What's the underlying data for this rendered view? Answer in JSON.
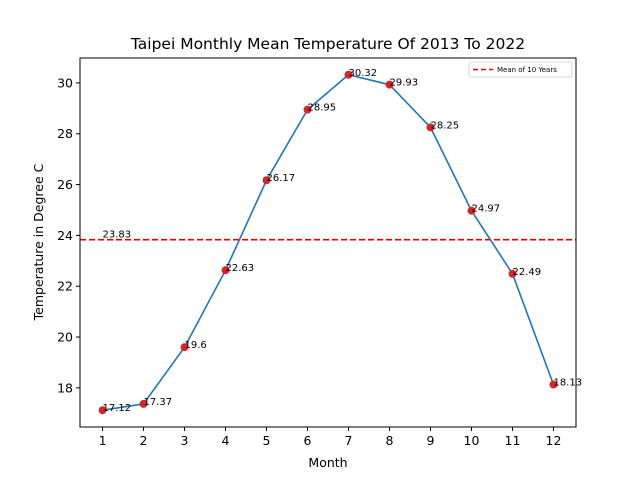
{
  "chart_data": {
    "type": "line",
    "title": "Taipei Monthly Mean Temperature Of 2013 To 2022",
    "xlabel": "Month",
    "ylabel": "Temperature in Degree C",
    "x": [
      1,
      2,
      3,
      4,
      5,
      6,
      7,
      8,
      9,
      10,
      11,
      12
    ],
    "xticks": [
      "1",
      "2",
      "3",
      "4",
      "5",
      "6",
      "7",
      "8",
      "9",
      "10",
      "11",
      "12"
    ],
    "yticks": [
      "18",
      "20",
      "22",
      "24",
      "26",
      "28",
      "30"
    ],
    "xlim": [
      0.45,
      12.55
    ],
    "ylim": [
      16.46,
      30.98
    ],
    "series": [
      {
        "values": [
          17.12,
          17.37,
          19.6,
          22.63,
          26.17,
          28.95,
          30.32,
          29.93,
          28.25,
          24.97,
          22.49,
          18.13
        ],
        "labels": [
          "17.12",
          "17.37",
          "19.6",
          "22.63",
          "26.17",
          "28.95",
          "30.32",
          "29.93",
          "28.25",
          "24.97",
          "22.49",
          "18.13"
        ],
        "line_color": "#1f77b4",
        "marker_color": "#d62728"
      }
    ],
    "mean_line": {
      "value": 23.83,
      "label": "23.83",
      "legend": "Mean of 10 Years",
      "color": "#e00000",
      "style": "dashed"
    },
    "legend_position": "top-right",
    "grid": false
  }
}
